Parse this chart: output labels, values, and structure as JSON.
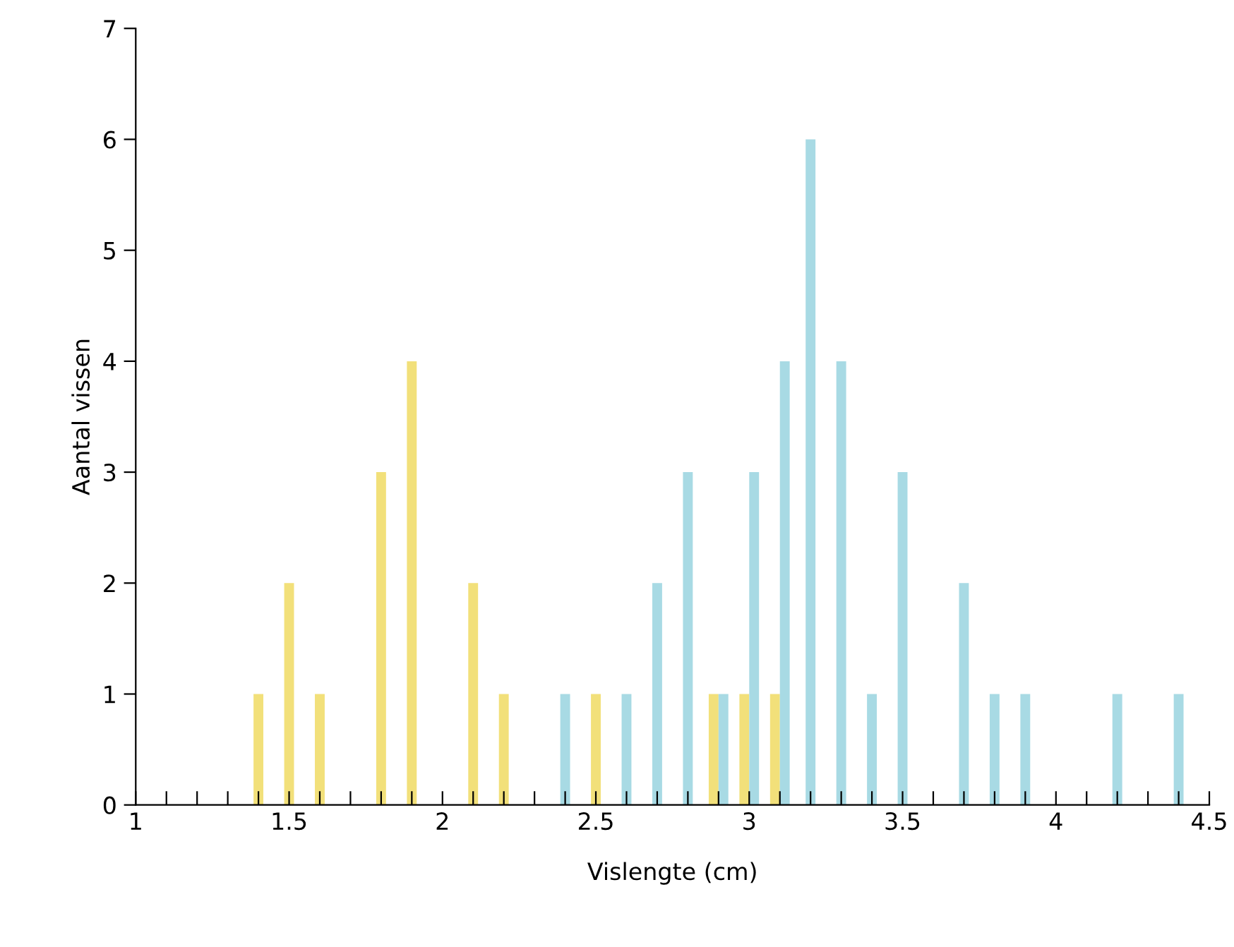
{
  "chart_data": {
    "type": "bar",
    "xlabel": "Vislengte (cm)",
    "ylabel": "Aantal vissen",
    "series": [
      {
        "color": "#f2e07a",
        "x": [
          1.4,
          1.5,
          1.6,
          1.8,
          1.9,
          2.1,
          2.2,
          2.5,
          2.9,
          3.0,
          3.1
        ],
        "values": [
          1,
          2,
          1,
          3,
          4,
          2,
          1,
          1,
          1,
          1,
          1
        ]
      },
      {
        "color": "#a8dae4",
        "x": [
          2.4,
          2.6,
          2.7,
          2.8,
          2.9,
          3.0,
          3.1,
          3.2,
          3.3,
          3.4,
          3.5,
          3.7,
          3.8,
          3.9,
          4.2,
          4.4
        ],
        "values": [
          1,
          1,
          2,
          3,
          1,
          3,
          4,
          6,
          4,
          1,
          3,
          2,
          1,
          1,
          1,
          1
        ]
      }
    ],
    "xlim": [
      1,
      4.5
    ],
    "xticks": [
      1,
      {
        "value": 1.1,
        "label": null
      },
      {
        "value": 1.2,
        "label": null
      },
      {
        "value": 1.3,
        "label": null
      },
      {
        "value": 1.4,
        "label": null
      },
      1.5,
      {
        "value": 1.6,
        "label": null
      },
      {
        "value": 1.7,
        "label": null
      },
      {
        "value": 1.8,
        "label": null
      },
      {
        "value": 1.9,
        "label": null
      },
      2,
      {
        "value": 2.1,
        "label": null
      },
      {
        "value": 2.2,
        "label": null
      },
      {
        "value": 2.3,
        "label": null
      },
      {
        "value": 2.4,
        "label": null
      },
      2.5,
      {
        "value": 2.6,
        "label": null
      },
      {
        "value": 2.7,
        "label": null
      },
      {
        "value": 2.8,
        "label": null
      },
      {
        "value": 2.9,
        "label": null
      },
      3,
      {
        "value": 3.1,
        "label": null
      },
      {
        "value": 3.2,
        "label": null
      },
      {
        "value": 3.3,
        "label": null
      },
      {
        "value": 3.4,
        "label": null
      },
      3.5,
      {
        "value": 3.6,
        "label": null
      },
      {
        "value": 3.7,
        "label": null
      },
      {
        "value": 3.8,
        "label": null
      },
      {
        "value": 3.9,
        "label": null
      },
      4,
      {
        "value": 4.1,
        "label": null
      },
      {
        "value": 4.2,
        "label": null
      },
      {
        "value": 4.3,
        "label": null
      },
      {
        "value": 4.4,
        "label": null
      },
      4.5
    ],
    "ylim": [
      0,
      7
    ],
    "yticks": [
      0,
      1,
      2,
      3,
      4,
      5,
      6,
      7
    ],
    "grid": false,
    "legend": false
  }
}
